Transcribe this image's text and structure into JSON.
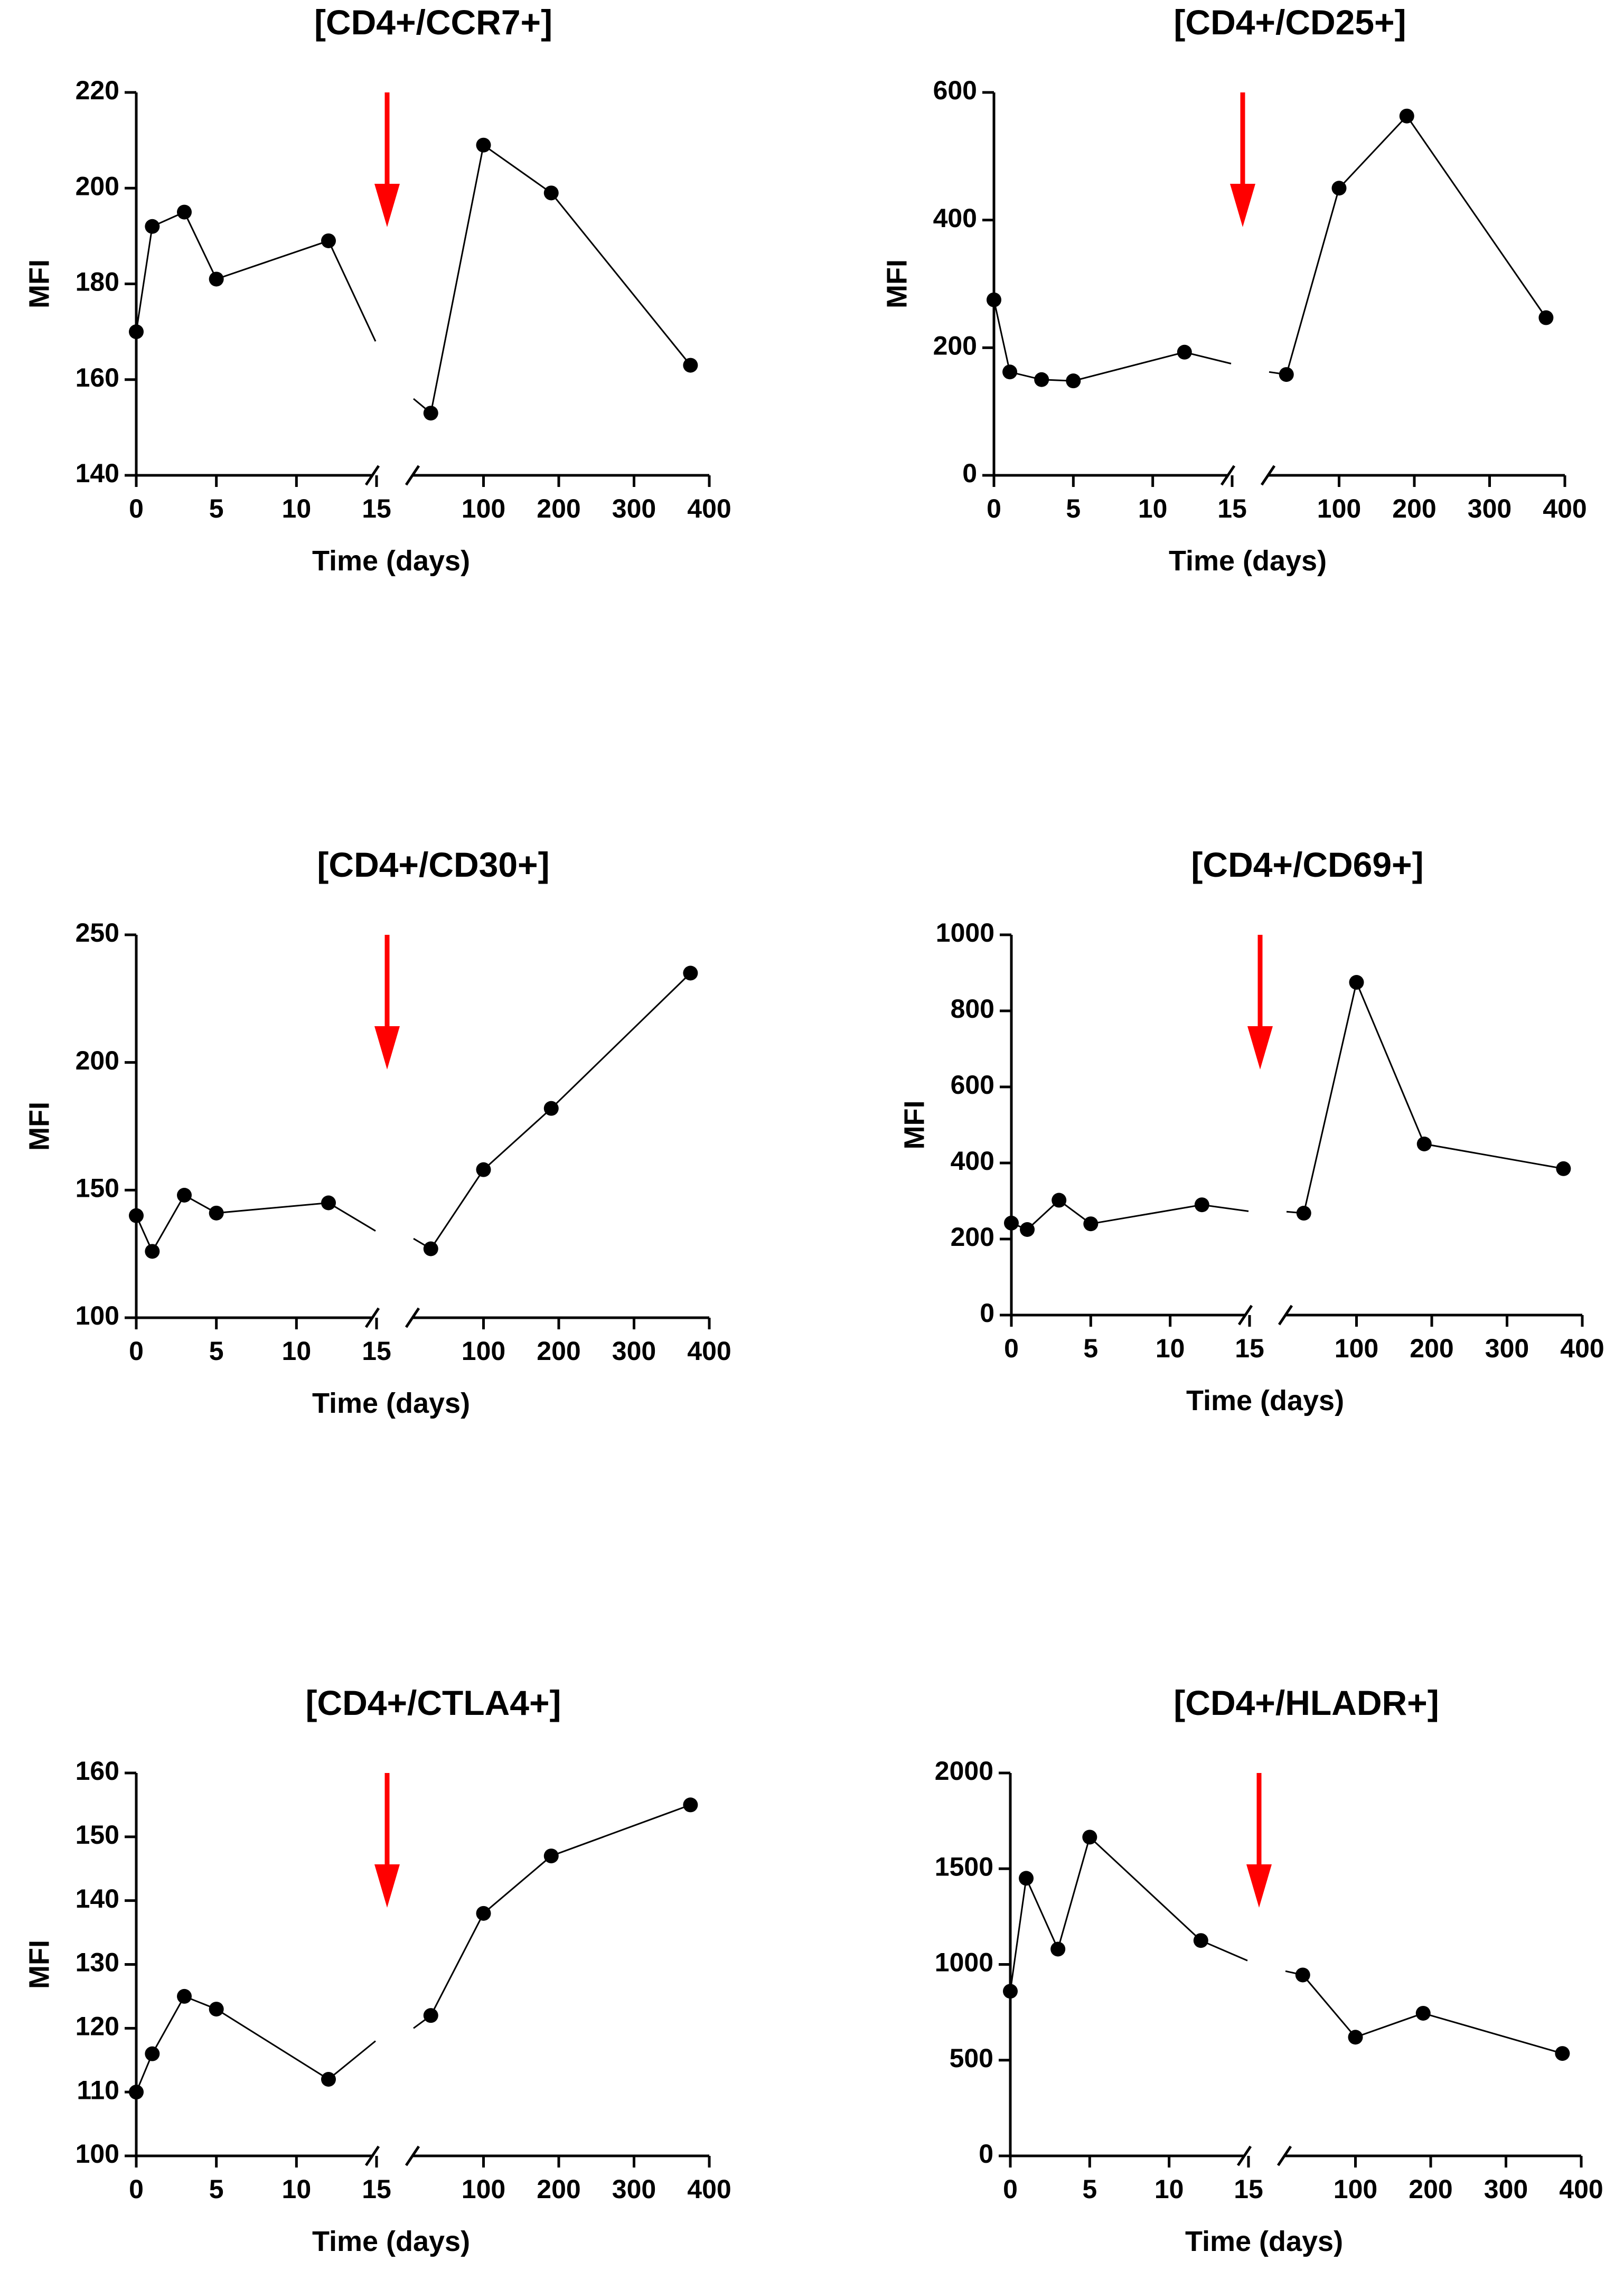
{
  "chart_data": [
    {
      "type": "line",
      "title": "[CD4+/CCR7+]",
      "xlabel": "Time (days)",
      "ylabel": "MFI",
      "ylim": [
        140,
        220
      ],
      "yticks": [
        140,
        160,
        180,
        200,
        220
      ],
      "x_segments": [
        {
          "range": [
            0,
            15
          ],
          "ticks": [
            0,
            5,
            10,
            15
          ]
        },
        {
          "range": [
            0,
            400
          ],
          "ticks": [
            100,
            200,
            300,
            400
          ]
        }
      ],
      "arrow_at_x": 15,
      "series": [
        {
          "x": [
            0,
            1,
            3,
            5,
            12
          ],
          "y": [
            170,
            192,
            195,
            181,
            189
          ],
          "extend_to_y": 168
        },
        {
          "x": [
            30,
            100,
            190,
            375
          ],
          "y": [
            153,
            209,
            199,
            163
          ],
          "start_y": 156
        }
      ]
    },
    {
      "type": "line",
      "title": "[CD4+/CD25+]",
      "xlabel": "Time (days)",
      "ylabel": "MFI",
      "ylim": [
        0,
        600
      ],
      "yticks": [
        0,
        200,
        400,
        600
      ],
      "x_segments": [
        {
          "range": [
            0,
            15
          ],
          "ticks": [
            0,
            5,
            10,
            15
          ]
        },
        {
          "range": [
            0,
            400
          ],
          "ticks": [
            100,
            200,
            300,
            400
          ]
        }
      ],
      "arrow_at_x": 15,
      "series": [
        {
          "x": [
            0,
            1,
            3,
            5,
            12
          ],
          "y": [
            275,
            162,
            150,
            148,
            193
          ],
          "extend_to_y": 175
        },
        {
          "x": [
            30,
            100,
            190,
            375
          ],
          "y": [
            158,
            450,
            563,
            247
          ],
          "start_y": 162
        }
      ]
    },
    {
      "type": "line",
      "title": "[CD4+/CD30+]",
      "xlabel": "Time (days)",
      "ylabel": "MFI",
      "ylim": [
        100,
        250
      ],
      "yticks": [
        100,
        150,
        200,
        250
      ],
      "x_segments": [
        {
          "range": [
            0,
            15
          ],
          "ticks": [
            0,
            5,
            10,
            15
          ]
        },
        {
          "range": [
            0,
            400
          ],
          "ticks": [
            100,
            200,
            300,
            400
          ]
        }
      ],
      "arrow_at_x": 15,
      "series": [
        {
          "x": [
            0,
            1,
            3,
            5,
            12
          ],
          "y": [
            140,
            126,
            148,
            141,
            145
          ],
          "extend_to_y": 134
        },
        {
          "x": [
            30,
            100,
            190,
            375
          ],
          "y": [
            127,
            158,
            182,
            235
          ],
          "start_y": 131
        }
      ]
    },
    {
      "type": "line",
      "title": "[CD4+/CD69+]",
      "xlabel": "Time (days)",
      "ylabel": "MFI",
      "ylim": [
        0,
        1000
      ],
      "yticks": [
        0,
        200,
        400,
        600,
        800,
        1000
      ],
      "x_segments": [
        {
          "range": [
            0,
            15
          ],
          "ticks": [
            0,
            5,
            10,
            15
          ]
        },
        {
          "range": [
            0,
            400
          ],
          "ticks": [
            100,
            200,
            300,
            400
          ]
        }
      ],
      "arrow_at_x": 15,
      "series": [
        {
          "x": [
            0,
            1,
            3,
            5,
            12
          ],
          "y": [
            242,
            225,
            302,
            240,
            290
          ],
          "extend_to_y": 273
        },
        {
          "x": [
            30,
            100,
            190,
            375
          ],
          "y": [
            268,
            875,
            450,
            385
          ],
          "start_y": 272
        }
      ]
    },
    {
      "type": "line",
      "title": "[CD4+/CTLA4+]",
      "xlabel": "Time (days)",
      "ylabel": "MFI",
      "ylim": [
        100,
        160
      ],
      "yticks": [
        100,
        110,
        120,
        130,
        140,
        150,
        160
      ],
      "x_segments": [
        {
          "range": [
            0,
            15
          ],
          "ticks": [
            0,
            5,
            10,
            15
          ]
        },
        {
          "range": [
            0,
            400
          ],
          "ticks": [
            100,
            200,
            300,
            400
          ]
        }
      ],
      "arrow_at_x": 15,
      "series": [
        {
          "x": [
            0,
            1,
            3,
            5,
            12
          ],
          "y": [
            110,
            116,
            125,
            123,
            112
          ],
          "extend_to_y": 118
        },
        {
          "x": [
            30,
            100,
            190,
            375
          ],
          "y": [
            122,
            138,
            147,
            155
          ],
          "start_y": 120
        }
      ]
    },
    {
      "type": "line",
      "title": "[CD4+/HLADR+]",
      "xlabel": "Time (days)",
      "ylabel": "",
      "ylim": [
        0,
        2000
      ],
      "yticks": [
        0,
        500,
        1000,
        1500,
        2000
      ],
      "x_segments": [
        {
          "range": [
            0,
            15
          ],
          "ticks": [
            0,
            5,
            10,
            15
          ]
        },
        {
          "range": [
            0,
            400
          ],
          "ticks": [
            100,
            200,
            300,
            400
          ]
        }
      ],
      "arrow_at_x": 15,
      "series": [
        {
          "x": [
            0,
            1,
            3,
            5,
            12
          ],
          "y": [
            860,
            1450,
            1080,
            1665,
            1125
          ],
          "extend_to_y": 1020
        },
        {
          "x": [
            30,
            100,
            190,
            375
          ],
          "y": [
            945,
            620,
            745,
            535
          ],
          "start_y": 965
        }
      ]
    }
  ]
}
